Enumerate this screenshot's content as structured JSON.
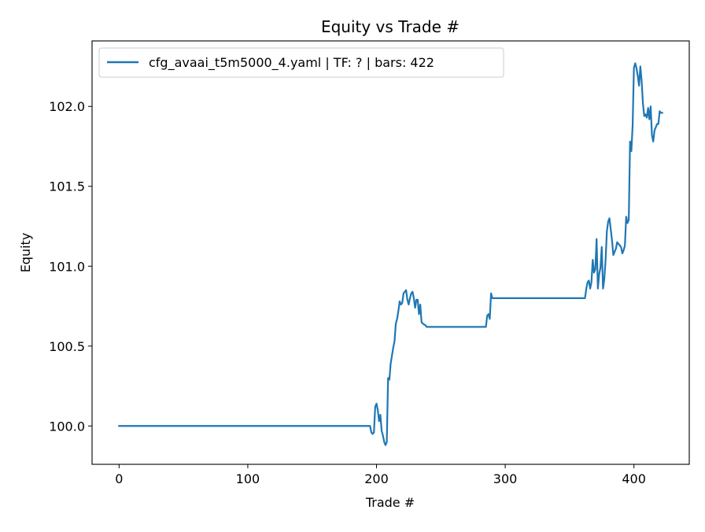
{
  "chart_data": {
    "type": "line",
    "title": "Equity vs Trade #",
    "xlabel": "Trade #",
    "ylabel": "Equity",
    "xlim": [
      -21,
      443
    ],
    "ylim": [
      99.76,
      102.41
    ],
    "xticks": [
      0,
      100,
      200,
      300,
      400
    ],
    "yticks": [
      100.0,
      100.5,
      101.0,
      101.5,
      102.0
    ],
    "ytick_labels": [
      "100.0",
      "100.5",
      "101.0",
      "101.5",
      "102.0"
    ],
    "grid": false,
    "legend_position": "upper-left",
    "series": [
      {
        "name": "cfg_avaai_t5m5000_4.yaml | TF: ? | bars: 422",
        "color": "#1f77b4",
        "points": [
          [
            0,
            100.0
          ],
          [
            195,
            100.0
          ],
          [
            196,
            99.96
          ],
          [
            197,
            99.95
          ],
          [
            198,
            99.96
          ],
          [
            199,
            100.12
          ],
          [
            200,
            100.14
          ],
          [
            201,
            100.1
          ],
          [
            202,
            100.03
          ],
          [
            203,
            100.07
          ],
          [
            204,
            99.97
          ],
          [
            205,
            99.94
          ],
          [
            206,
            99.9
          ],
          [
            207,
            99.88
          ],
          [
            208,
            99.9
          ],
          [
            209,
            100.3
          ],
          [
            210,
            100.29
          ],
          [
            211,
            100.39
          ],
          [
            212,
            100.44
          ],
          [
            213,
            100.49
          ],
          [
            214,
            100.53
          ],
          [
            215,
            100.64
          ],
          [
            216,
            100.67
          ],
          [
            217,
            100.72
          ],
          [
            218,
            100.78
          ],
          [
            219,
            100.76
          ],
          [
            220,
            100.77
          ],
          [
            221,
            100.83
          ],
          [
            222,
            100.84
          ],
          [
            223,
            100.85
          ],
          [
            224,
            100.79
          ],
          [
            225,
            100.76
          ],
          [
            226,
            100.8
          ],
          [
            227,
            100.83
          ],
          [
            228,
            100.84
          ],
          [
            229,
            100.8
          ],
          [
            230,
            100.74
          ],
          [
            231,
            100.79
          ],
          [
            232,
            100.79
          ],
          [
            233,
            100.7
          ],
          [
            234,
            100.76
          ],
          [
            235,
            100.65
          ],
          [
            236,
            100.64
          ],
          [
            238,
            100.63
          ],
          [
            239,
            100.62
          ],
          [
            285,
            100.62
          ],
          [
            286,
            100.69
          ],
          [
            287,
            100.7
          ],
          [
            288,
            100.67
          ],
          [
            289,
            100.83
          ],
          [
            290,
            100.8
          ],
          [
            362,
            100.8
          ],
          [
            363,
            100.86
          ],
          [
            364,
            100.9
          ],
          [
            365,
            100.91
          ],
          [
            366,
            100.86
          ],
          [
            367,
            100.9
          ],
          [
            368,
            101.04
          ],
          [
            369,
            100.96
          ],
          [
            370,
            100.98
          ],
          [
            371,
            101.17
          ],
          [
            372,
            100.86
          ],
          [
            373,
            100.95
          ],
          [
            374,
            100.99
          ],
          [
            375,
            101.12
          ],
          [
            376,
            100.86
          ],
          [
            377,
            100.92
          ],
          [
            378,
            101.04
          ],
          [
            379,
            101.22
          ],
          [
            380,
            101.28
          ],
          [
            381,
            101.3
          ],
          [
            382,
            101.23
          ],
          [
            383,
            101.16
          ],
          [
            384,
            101.07
          ],
          [
            385,
            101.09
          ],
          [
            386,
            101.11
          ],
          [
            387,
            101.15
          ],
          [
            388,
            101.14
          ],
          [
            389,
            101.13
          ],
          [
            390,
            101.12
          ],
          [
            391,
            101.08
          ],
          [
            392,
            101.1
          ],
          [
            393,
            101.13
          ],
          [
            394,
            101.31
          ],
          [
            395,
            101.27
          ],
          [
            396,
            101.29
          ],
          [
            397,
            101.78
          ],
          [
            398,
            101.72
          ],
          [
            399,
            101.88
          ],
          [
            400,
            102.24
          ],
          [
            401,
            102.27
          ],
          [
            402,
            102.24
          ],
          [
            403,
            102.19
          ],
          [
            404,
            102.13
          ],
          [
            405,
            102.25
          ],
          [
            406,
            102.16
          ],
          [
            407,
            102.02
          ],
          [
            408,
            101.94
          ],
          [
            409,
            101.95
          ],
          [
            410,
            101.93
          ],
          [
            411,
            101.99
          ],
          [
            412,
            101.92
          ],
          [
            413,
            102.0
          ],
          [
            414,
            101.82
          ],
          [
            415,
            101.78
          ],
          [
            416,
            101.85
          ],
          [
            417,
            101.87
          ],
          [
            418,
            101.89
          ],
          [
            419,
            101.89
          ],
          [
            420,
            101.97
          ],
          [
            421,
            101.96
          ],
          [
            422,
            101.96
          ]
        ]
      }
    ]
  }
}
